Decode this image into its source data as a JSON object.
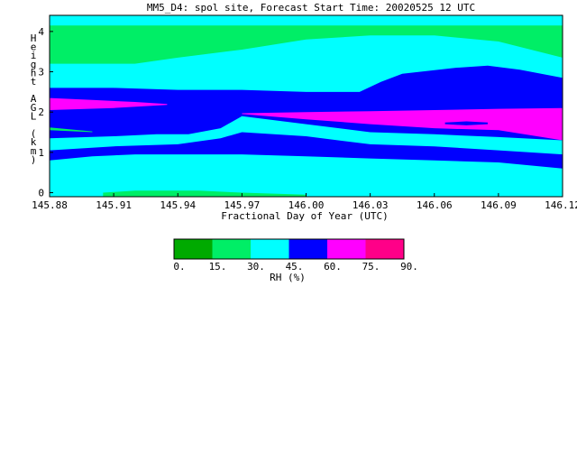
{
  "chart_data": {
    "type": "heatmap",
    "title": "MM5_D4: spol site,  Forecast Start Time: 20020525 12 UTC",
    "xlabel": "Fractional Day of Year (UTC)",
    "ylabel": "Height AGL (km)",
    "xlim": [
      145.88,
      146.12
    ],
    "ylim": [
      -0.1,
      4.4
    ],
    "x_ticks": [
      "145.88",
      "145.91",
      "145.94",
      "145.97",
      "146.00",
      "146.03",
      "146.06",
      "146.09",
      "146.12"
    ],
    "y_ticks": [
      "0",
      "1",
      "2",
      "3",
      "4"
    ],
    "colorbar": {
      "label": "RH (%)",
      "levels": [
        "0.",
        "15.",
        "30.",
        "45.",
        "60.",
        "75.",
        "90."
      ],
      "colors": [
        "#00aa00",
        "#00ee66",
        "#00ffff",
        "#0000ff",
        "#ff00ff",
        "#ff0088"
      ]
    },
    "bands": [
      {
        "name": "30-45",
        "color": "#00ffff",
        "bottom": [
          [
            145.88,
            -0.1
          ],
          [
            146.12,
            -0.1
          ]
        ],
        "top": [
          [
            145.88,
            4.4
          ],
          [
            146.12,
            4.4
          ]
        ]
      },
      {
        "name": "15-30",
        "color": "#00ee66",
        "bottom": [
          [
            145.88,
            3.2
          ],
          [
            145.905,
            3.2
          ],
          [
            145.92,
            3.2
          ],
          [
            145.94,
            3.35
          ],
          [
            145.97,
            3.55
          ],
          [
            146.0,
            3.8
          ],
          [
            146.03,
            3.9
          ],
          [
            146.06,
            3.9
          ],
          [
            146.09,
            3.75
          ],
          [
            146.12,
            3.35
          ]
        ],
        "top": [
          [
            145.88,
            4.15
          ],
          [
            146.12,
            4.15
          ]
        ]
      },
      {
        "name": "45-60 upper",
        "color": "#0000ff",
        "bottom": [
          [
            145.88,
            1.8
          ],
          [
            145.9,
            1.78
          ],
          [
            145.92,
            1.75
          ],
          [
            145.95,
            1.72
          ],
          [
            145.97,
            1.9
          ],
          [
            146.0,
            1.7
          ],
          [
            146.03,
            1.5
          ],
          [
            146.06,
            1.45
          ],
          [
            146.09,
            1.38
          ],
          [
            146.12,
            1.3
          ]
        ],
        "top": [
          [
            145.88,
            2.6
          ],
          [
            145.91,
            2.6
          ],
          [
            145.94,
            2.55
          ],
          [
            145.97,
            2.55
          ],
          [
            146.0,
            2.5
          ],
          [
            146.025,
            2.5
          ],
          [
            146.035,
            2.75
          ],
          [
            146.045,
            2.95
          ],
          [
            146.07,
            3.1
          ],
          [
            146.085,
            3.15
          ],
          [
            146.1,
            3.05
          ],
          [
            146.12,
            2.85
          ]
        ]
      },
      {
        "name": "45-60 middle",
        "color": "#0000ff",
        "bottom": [
          [
            145.88,
            1.35
          ],
          [
            145.91,
            1.4
          ],
          [
            145.93,
            1.45
          ],
          [
            145.945,
            1.45
          ],
          [
            145.96,
            1.6
          ],
          [
            145.97,
            1.9
          ]
        ],
        "top": [
          [
            145.88,
            1.85
          ],
          [
            145.92,
            1.82
          ],
          [
            145.94,
            1.8
          ],
          [
            145.97,
            1.9
          ]
        ]
      },
      {
        "name": "45-60 lower",
        "color": "#0000ff",
        "bottom": [
          [
            145.88,
            0.8
          ],
          [
            145.9,
            0.9
          ],
          [
            145.92,
            0.95
          ],
          [
            145.94,
            0.95
          ],
          [
            145.97,
            0.95
          ],
          [
            146.0,
            0.9
          ],
          [
            146.03,
            0.85
          ],
          [
            146.06,
            0.8
          ],
          [
            146.09,
            0.75
          ],
          [
            146.12,
            0.6
          ]
        ],
        "top": [
          [
            145.88,
            1.05
          ],
          [
            145.91,
            1.15
          ],
          [
            145.94,
            1.2
          ],
          [
            145.96,
            1.35
          ],
          [
            145.97,
            1.5
          ],
          [
            146.0,
            1.4
          ],
          [
            146.03,
            1.2
          ],
          [
            146.06,
            1.15
          ],
          [
            146.09,
            1.05
          ],
          [
            146.12,
            0.95
          ]
        ]
      },
      {
        "name": "15-30 low",
        "color": "#00ee66",
        "bottom": [
          [
            145.905,
            -0.1
          ],
          [
            146.0,
            -0.1
          ]
        ],
        "top": [
          [
            145.905,
            0.0
          ],
          [
            145.92,
            0.05
          ],
          [
            145.95,
            0.05
          ],
          [
            145.97,
            0.0
          ],
          [
            146.0,
            -0.05
          ]
        ]
      },
      {
        "name": "60-75 left",
        "color": "#ff00ff",
        "bottom": [
          [
            145.88,
            2.05
          ],
          [
            145.91,
            2.1
          ],
          [
            145.935,
            2.18
          ]
        ],
        "top": [
          [
            145.88,
            2.35
          ],
          [
            145.9,
            2.3
          ],
          [
            145.92,
            2.25
          ],
          [
            145.935,
            2.2
          ]
        ]
      },
      {
        "name": "60-75 right",
        "color": "#ff00ff",
        "bottom": [
          [
            145.97,
            1.95
          ],
          [
            146.0,
            1.82
          ],
          [
            146.03,
            1.7
          ],
          [
            146.06,
            1.6
          ],
          [
            146.09,
            1.55
          ],
          [
            146.12,
            1.3
          ]
        ],
        "top": [
          [
            145.97,
            1.97
          ],
          [
            146.0,
            2.0
          ],
          [
            146.03,
            2.02
          ],
          [
            146.06,
            2.05
          ],
          [
            146.09,
            2.08
          ],
          [
            146.12,
            2.1
          ]
        ]
      },
      {
        "name": "45-60 inner",
        "color": "#0000ff",
        "bottom": [
          [
            146.065,
            1.7
          ],
          [
            146.075,
            1.67
          ],
          [
            146.085,
            1.7
          ]
        ],
        "top": [
          [
            146.065,
            1.74
          ],
          [
            146.075,
            1.77
          ],
          [
            146.085,
            1.74
          ]
        ]
      },
      {
        "name": "15-30 sliver",
        "color": "#00ee66",
        "bottom": [
          [
            145.88,
            1.55
          ],
          [
            145.9,
            1.5
          ]
        ],
        "top": [
          [
            145.88,
            1.62
          ],
          [
            145.9,
            1.52
          ]
        ]
      }
    ]
  }
}
